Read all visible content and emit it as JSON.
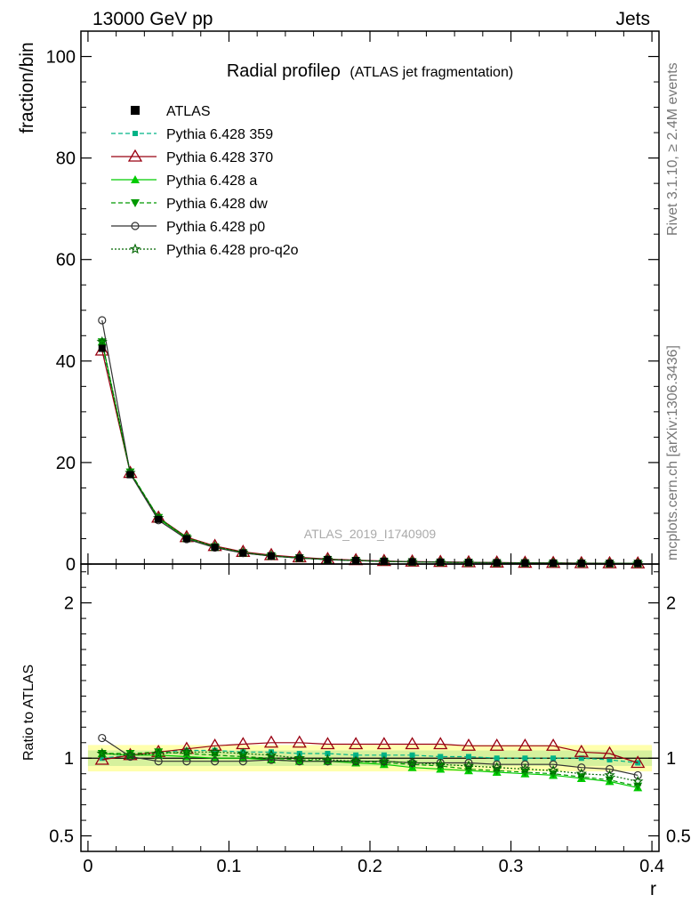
{
  "header": {
    "left": "13000 GeV pp",
    "right": "Jets"
  },
  "side": {
    "rivet": "Rivet 3.1.10, ≥ 2.4M events",
    "mcplots": "mcplots.cern.ch [arXiv:1306.3436]"
  },
  "watermark": "ATLAS_2019_I1740909",
  "chart_data": [
    {
      "type": "line",
      "title": "Radial profileρ",
      "subtitle": "(ATLAS jet fragmentation)",
      "ylabel": "fraction/bin",
      "xlabel": "r",
      "xlim": [
        -0.005,
        0.405
      ],
      "ylim": [
        0,
        105
      ],
      "yticks": [
        0,
        20,
        40,
        60,
        80,
        100
      ],
      "xticks": [
        0,
        0.1,
        0.2,
        0.3,
        0.4
      ],
      "xticklabels": [
        "0",
        "0.1",
        "0.2",
        "0.3",
        "0.4"
      ],
      "legend_position": "top-left",
      "x": [
        0.01,
        0.03,
        0.05,
        0.07,
        0.09,
        0.11,
        0.13,
        0.15,
        0.17,
        0.19,
        0.21,
        0.23,
        0.25,
        0.27,
        0.29,
        0.31,
        0.33,
        0.35,
        0.37,
        0.39
      ],
      "reference": {
        "name": "ATLAS",
        "values": [
          42.5,
          17.6,
          8.8,
          5.0,
          3.3,
          2.2,
          1.6,
          1.2,
          0.9,
          0.7,
          0.55,
          0.45,
          0.38,
          0.32,
          0.27,
          0.23,
          0.2,
          0.17,
          0.15,
          0.13
        ]
      },
      "series": [
        {
          "name": "Pythia 6.428 359",
          "color": "#00b386",
          "dash": "5,3",
          "marker": "square-small",
          "ratio": [
            1.0,
            1.02,
            1.04,
            1.05,
            1.05,
            1.04,
            1.04,
            1.03,
            1.03,
            1.02,
            1.02,
            1.02,
            1.01,
            1.01,
            1.0,
            1.0,
            1.0,
            1.0,
            0.99,
            0.97
          ]
        },
        {
          "name": "Pythia 6.428 370",
          "color": "#990011",
          "dash": "",
          "marker": "triangle-open",
          "ratio": [
            0.99,
            1.02,
            1.04,
            1.06,
            1.08,
            1.09,
            1.1,
            1.1,
            1.09,
            1.09,
            1.09,
            1.09,
            1.09,
            1.08,
            1.08,
            1.08,
            1.08,
            1.04,
            1.03,
            0.97
          ]
        },
        {
          "name": "Pythia 6.428 a",
          "color": "#00cc00",
          "dash": "",
          "marker": "triangle-filled",
          "ratio": [
            1.03,
            1.02,
            1.02,
            1.01,
            1.0,
            1.0,
            0.99,
            0.98,
            0.98,
            0.97,
            0.96,
            0.94,
            0.93,
            0.92,
            0.91,
            0.9,
            0.89,
            0.87,
            0.85,
            0.81
          ]
        },
        {
          "name": "Pythia 6.428 dw",
          "color": "#009900",
          "dash": "5,3",
          "marker": "triangle-down",
          "ratio": [
            1.03,
            1.03,
            1.04,
            1.03,
            1.02,
            1.01,
            1.0,
            0.99,
            0.98,
            0.98,
            0.97,
            0.96,
            0.95,
            0.93,
            0.92,
            0.91,
            0.9,
            0.88,
            0.86,
            0.82
          ]
        },
        {
          "name": "Pythia 6.428 p0",
          "color": "#333333",
          "dash": "",
          "marker": "circle-open",
          "ratio": [
            1.13,
            1.01,
            0.98,
            0.98,
            0.98,
            0.98,
            0.99,
            0.98,
            0.98,
            0.98,
            0.98,
            0.97,
            0.97,
            0.97,
            0.96,
            0.96,
            0.96,
            0.94,
            0.93,
            0.89
          ]
        },
        {
          "name": "Pythia 6.428 pro-q2o",
          "color": "#006600",
          "dash": "2,2",
          "marker": "star-open",
          "ratio": [
            1.03,
            1.02,
            1.03,
            1.04,
            1.04,
            1.03,
            1.02,
            1.0,
            0.99,
            0.98,
            0.98,
            0.97,
            0.96,
            0.95,
            0.94,
            0.93,
            0.92,
            0.9,
            0.89,
            0.85
          ]
        }
      ]
    },
    {
      "type": "line",
      "ylabel": "Ratio to ATLAS",
      "xlabel": "r",
      "xlim": [
        -0.005,
        0.405
      ],
      "ylim": [
        0.4,
        2.25
      ],
      "yticks": [
        0.5,
        1,
        2
      ],
      "yticklabels": [
        "0.5",
        "1",
        "2"
      ],
      "band_rel_uncertainty": 0.05
    }
  ]
}
